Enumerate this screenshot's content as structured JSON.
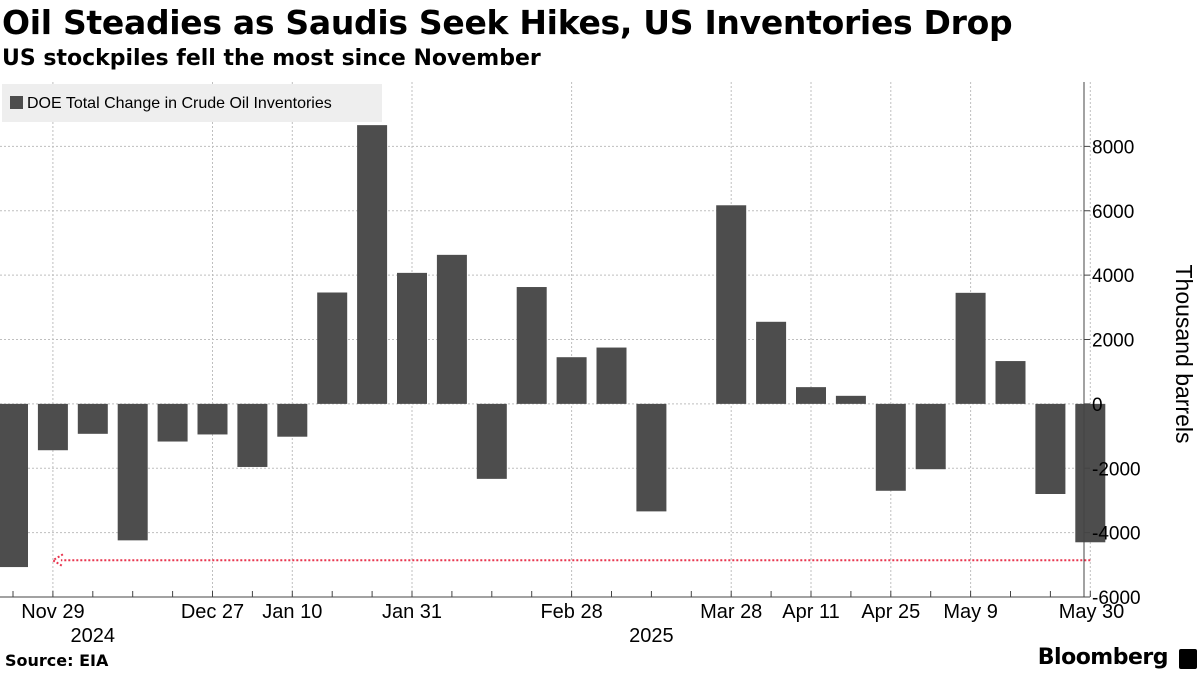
{
  "header": {
    "title": "Oil Steadies as Saudis Seek Hikes, US Inventories Drop",
    "subtitle": "US stockpiles fell the most since November"
  },
  "footer": {
    "source": "Source: EIA",
    "brand": "Bloomberg"
  },
  "colors": {
    "bar": "#4d4d4d",
    "grid": "#bfbfbf",
    "axis": "#444444",
    "annotation_arrow": "#e8344e",
    "legend_bg": "#eeeeee"
  },
  "chart_data": {
    "type": "bar",
    "title": "Oil Steadies as Saudis Seek Hikes, US Inventories Drop",
    "subtitle": "US stockpiles fell the most since November",
    "ylabel": "Thousand barrels",
    "ylim": [
      -6000,
      10000
    ],
    "yticks": [
      -6000,
      -4000,
      -2000,
      0,
      2000,
      4000,
      6000,
      8000
    ],
    "y_axis_side": "right",
    "grid": true,
    "legend_position": "top-left",
    "x": [
      "2024-11-22",
      "2024-11-29",
      "2024-12-06",
      "2024-12-13",
      "2024-12-20",
      "2024-12-27",
      "2025-01-03",
      "2025-01-10",
      "2025-01-17",
      "2025-01-24",
      "2025-01-31",
      "2025-02-07",
      "2025-02-14",
      "2025-02-21",
      "2025-02-28",
      "2025-03-07",
      "2025-03-14",
      "2025-03-21",
      "2025-03-28",
      "2025-04-04",
      "2025-04-11",
      "2025-04-18",
      "2025-04-25",
      "2025-05-02",
      "2025-05-09",
      "2025-05-16",
      "2025-05-23",
      "2025-05-30"
    ],
    "series": [
      {
        "name": "DOE Total Change in Crude Oil Inventories",
        "values": [
          -5070,
          -1440,
          -930,
          -4240,
          -1170,
          -950,
          -1960,
          -1020,
          3460,
          8660,
          4070,
          4630,
          -2330,
          3630,
          1450,
          1750,
          -3340,
          0,
          6170,
          2550,
          520,
          250,
          -2700,
          -2030,
          3450,
          1330,
          -2800,
          -4300
        ]
      }
    ],
    "x_tick_labels": [
      {
        "label": "Nov 29",
        "date": "2024-11-29"
      },
      {
        "label": "Dec 27",
        "date": "2024-12-27"
      },
      {
        "label": "Jan 10",
        "date": "2025-01-10"
      },
      {
        "label": "Jan 31",
        "date": "2025-01-31"
      },
      {
        "label": "Feb 28",
        "date": "2025-02-28"
      },
      {
        "label": "Mar 28",
        "date": "2025-03-28"
      },
      {
        "label": "Apr 11",
        "date": "2025-04-11"
      },
      {
        "label": "Apr 25",
        "date": "2025-04-25"
      },
      {
        "label": "May 9",
        "date": "2025-05-09"
      },
      {
        "label": "May 30",
        "date": "2025-05-30"
      }
    ],
    "year_labels": [
      {
        "label": "2024",
        "date": "2024-12-06"
      },
      {
        "label": "2025",
        "date": "2025-03-14"
      }
    ],
    "annotations": [
      {
        "type": "arrow",
        "value": -4860,
        "from": "2025-05-30",
        "to": "2024-11-29"
      }
    ]
  }
}
